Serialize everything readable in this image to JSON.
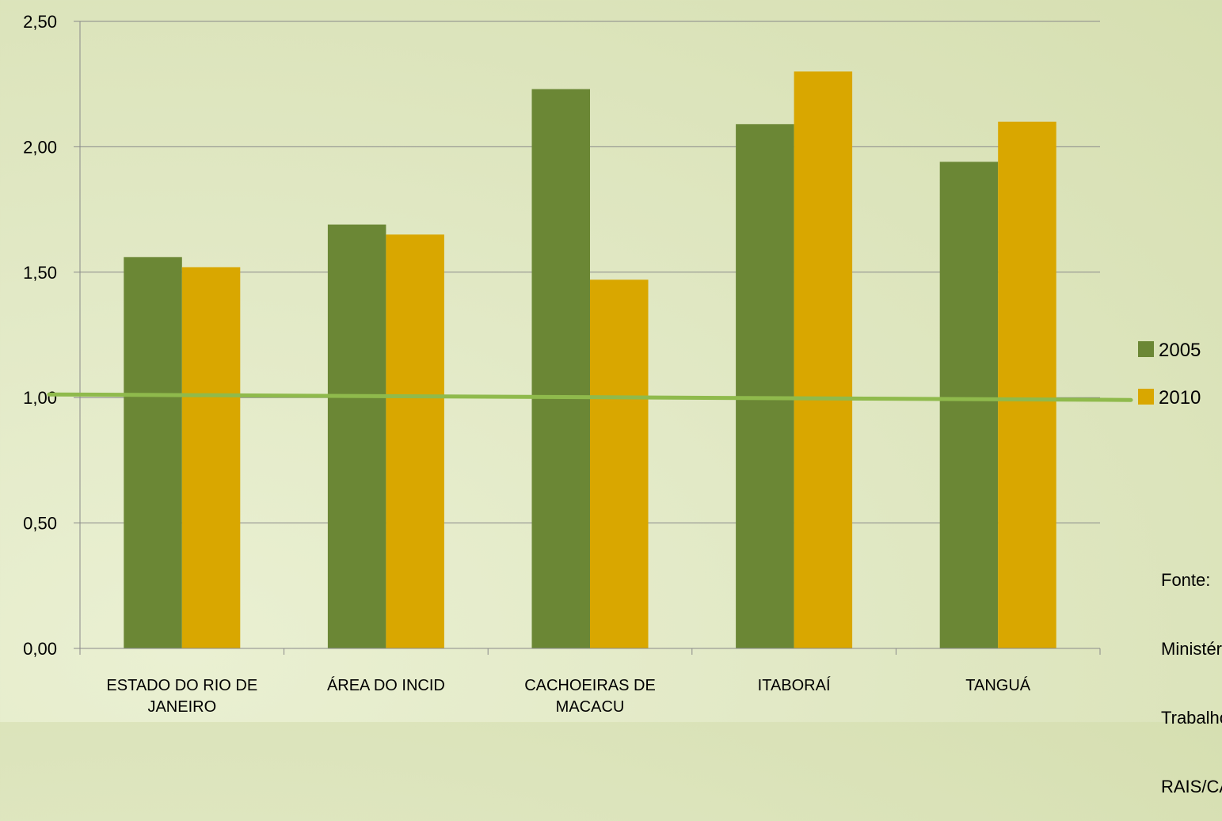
{
  "chart_data": {
    "type": "bar",
    "categories": [
      [
        "ESTADO DO RIO DE",
        "JANEIRO"
      ],
      [
        "ÁREA DO INCID"
      ],
      [
        "CACHOEIRAS DE",
        "MACACU"
      ],
      [
        "ITABORAÍ"
      ],
      [
        "TANGUÁ"
      ]
    ],
    "series": [
      {
        "name": "2005",
        "color": "#6b8735",
        "values": [
          1.56,
          1.69,
          2.23,
          2.09,
          1.94
        ]
      },
      {
        "name": "2010",
        "color": "#d9a700",
        "values": [
          1.52,
          1.65,
          1.47,
          2.3,
          2.1
        ]
      }
    ],
    "reference_line": {
      "value": 1.0,
      "color": "#8fba4c"
    },
    "ylim": [
      0,
      2.5
    ],
    "yticks": [
      "0,00",
      "0,50",
      "1,00",
      "1,50",
      "2,00",
      "2,50"
    ],
    "ytick_values": [
      0,
      0.5,
      1.0,
      1.5,
      2.0,
      2.5
    ],
    "grid": true,
    "legend_position": "right"
  },
  "source_note": [
    "Fonte:",
    "Ministério do",
    "Trabalho e",
    "RAIS/CAGED"
  ]
}
